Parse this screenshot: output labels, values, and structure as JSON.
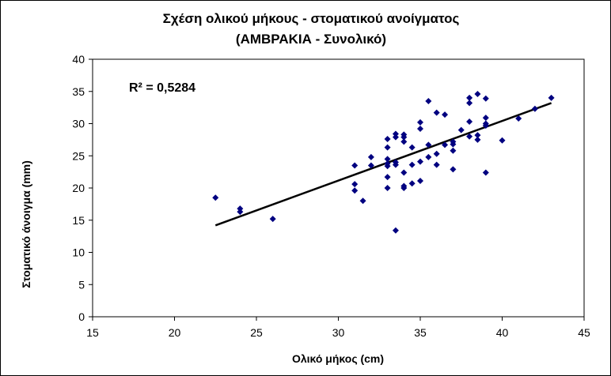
{
  "chart_data": {
    "type": "scatter",
    "title": "Σχέση ολικού  μήκους - στοματικού  ανοίγματος",
    "subtitle": "(ΑΜΒΡΑΚΙΑ  -  Συνολικό)",
    "xlabel": "Ολικό μήκος (cm)",
    "ylabel": "Στοματικό  άνοιγμα (mm)",
    "xlim": [
      15,
      45
    ],
    "ylim": [
      0,
      40
    ],
    "xticks": [
      "15",
      "20",
      "25",
      "30",
      "35",
      "40",
      "45"
    ],
    "yticks": [
      "0",
      "5",
      "10",
      "15",
      "20",
      "25",
      "30",
      "35",
      "40"
    ],
    "xtick_values": [
      15,
      20,
      25,
      30,
      35,
      40,
      45
    ],
    "ytick_values": [
      0,
      5,
      10,
      15,
      20,
      25,
      30,
      35,
      40
    ],
    "annotation": "R² = 0,5284",
    "grid": false,
    "marker_color": "#000080",
    "trendline_color": "#000000",
    "points": [
      {
        "x": 22.5,
        "y": 18.5
      },
      {
        "x": 24,
        "y": 16.3
      },
      {
        "x": 24,
        "y": 16.8
      },
      {
        "x": 26,
        "y": 15.2
      },
      {
        "x": 31,
        "y": 23.5
      },
      {
        "x": 31,
        "y": 20.6
      },
      {
        "x": 31,
        "y": 19.6
      },
      {
        "x": 31.5,
        "y": 18
      },
      {
        "x": 32,
        "y": 24.8
      },
      {
        "x": 32,
        "y": 23.5
      },
      {
        "x": 33,
        "y": 27.6
      },
      {
        "x": 33,
        "y": 26.3
      },
      {
        "x": 33,
        "y": 24.5
      },
      {
        "x": 33,
        "y": 23.8
      },
      {
        "x": 33,
        "y": 23.4
      },
      {
        "x": 33,
        "y": 21.7
      },
      {
        "x": 33,
        "y": 20
      },
      {
        "x": 33.5,
        "y": 28.4
      },
      {
        "x": 33.5,
        "y": 27.9
      },
      {
        "x": 33.5,
        "y": 24
      },
      {
        "x": 33.5,
        "y": 23.6
      },
      {
        "x": 33.5,
        "y": 13.4
      },
      {
        "x": 34,
        "y": 28.3
      },
      {
        "x": 34,
        "y": 27.9
      },
      {
        "x": 34,
        "y": 27.2
      },
      {
        "x": 34,
        "y": 22.4
      },
      {
        "x": 34,
        "y": 20.3
      },
      {
        "x": 34,
        "y": 20
      },
      {
        "x": 34.5,
        "y": 26.3
      },
      {
        "x": 34.5,
        "y": 23.6
      },
      {
        "x": 34.5,
        "y": 20.7
      },
      {
        "x": 35,
        "y": 30.2
      },
      {
        "x": 35,
        "y": 29.2
      },
      {
        "x": 35,
        "y": 24.1
      },
      {
        "x": 35,
        "y": 21.1
      },
      {
        "x": 35.5,
        "y": 33.5
      },
      {
        "x": 35.5,
        "y": 26.7
      },
      {
        "x": 35.5,
        "y": 24.8
      },
      {
        "x": 36,
        "y": 31.7
      },
      {
        "x": 36,
        "y": 25.3
      },
      {
        "x": 36,
        "y": 23.6
      },
      {
        "x": 36.5,
        "y": 31.4
      },
      {
        "x": 36.5,
        "y": 26.7
      },
      {
        "x": 37,
        "y": 27.2
      },
      {
        "x": 37,
        "y": 26.8
      },
      {
        "x": 37,
        "y": 25.8
      },
      {
        "x": 37,
        "y": 22.9
      },
      {
        "x": 37.5,
        "y": 29
      },
      {
        "x": 38,
        "y": 34
      },
      {
        "x": 38,
        "y": 33.2
      },
      {
        "x": 38,
        "y": 30.3
      },
      {
        "x": 38,
        "y": 28
      },
      {
        "x": 38.5,
        "y": 34.6
      },
      {
        "x": 38.5,
        "y": 28.2
      },
      {
        "x": 38.5,
        "y": 27.5
      },
      {
        "x": 39,
        "y": 33.9
      },
      {
        "x": 39,
        "y": 30.9
      },
      {
        "x": 39,
        "y": 30
      },
      {
        "x": 39,
        "y": 29.7
      },
      {
        "x": 39,
        "y": 22.4
      },
      {
        "x": 40,
        "y": 27.4
      },
      {
        "x": 41,
        "y": 30.8
      },
      {
        "x": 42,
        "y": 32.3
      },
      {
        "x": 43,
        "y": 34
      }
    ],
    "trendline": {
      "x": [
        22.5,
        43
      ],
      "y": [
        14.2,
        33.2
      ]
    }
  }
}
